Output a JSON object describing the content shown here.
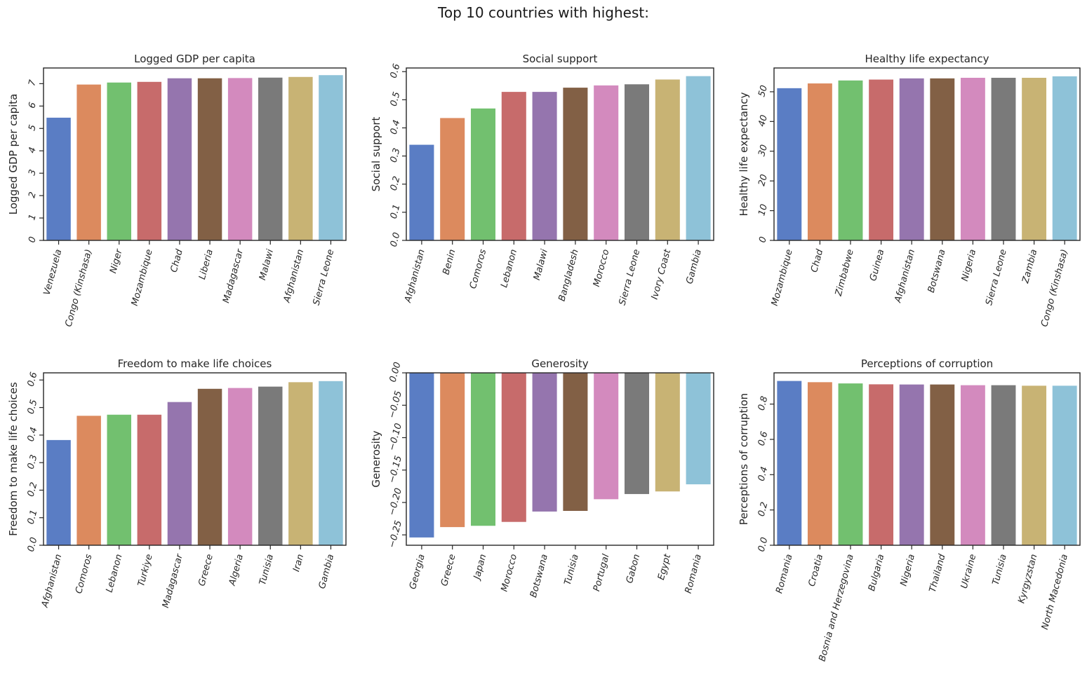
{
  "figure": {
    "suptitle": "Top 10 countries with highest:"
  },
  "palette": [
    "#5a7dc4",
    "#dc8a5e",
    "#72c06f",
    "#c76b6b",
    "#9575ae",
    "#826045",
    "#d38abe",
    "#7a7a7a",
    "#c8b374",
    "#8ec2d8"
  ],
  "chart_data": [
    {
      "type": "bar",
      "title": "Logged GDP per capita",
      "ylabel": "Logged GDP per capita",
      "xlabel": "",
      "categories": [
        "Venezuela",
        "Congo (Kinshasa)",
        "Niger",
        "Mozambique",
        "Chad",
        "Liberia",
        "Madagascar",
        "Malawi",
        "Afghanistan",
        "Sierra Leone"
      ],
      "values": [
        5.48,
        6.96,
        7.05,
        7.08,
        7.24,
        7.24,
        7.25,
        7.27,
        7.3,
        7.38
      ],
      "ylim": [
        0,
        7.7
      ],
      "yticks": [
        0,
        1,
        2,
        3,
        4,
        5,
        6,
        7
      ],
      "ytick_labels": [
        "0",
        "1",
        "2",
        "3",
        "4",
        "5",
        "6",
        "7"
      ]
    },
    {
      "type": "bar",
      "title": "Social support",
      "ylabel": "Social support",
      "xlabel": "",
      "categories": [
        "Afghanistan",
        "Benin",
        "Comoros",
        "Lebanon",
        "Malawi",
        "Bangladesh",
        "Morocco",
        "Sierra Leone",
        "Ivory Coast",
        "Gambia"
      ],
      "values": [
        0.34,
        0.435,
        0.469,
        0.528,
        0.528,
        0.543,
        0.551,
        0.555,
        0.572,
        0.584
      ],
      "ylim": [
        0,
        0.613
      ],
      "yticks": [
        0,
        0.1,
        0.2,
        0.3,
        0.4,
        0.5,
        0.6
      ],
      "ytick_labels": [
        "0.0",
        "0.1",
        "0.2",
        "0.3",
        "0.4",
        "0.5",
        "0.6"
      ]
    },
    {
      "type": "bar",
      "title": "Healthy life expectancy",
      "ylabel": "Healthy life expectancy",
      "xlabel": "",
      "categories": [
        "Mozambique",
        "Chad",
        "Zimbabwe",
        "Guinea",
        "Afghanistan",
        "Botswana",
        "Nigeria",
        "Sierra Leone",
        "Zambia",
        "Congo (Kinshasa)"
      ],
      "values": [
        51.2,
        52.8,
        53.8,
        54.1,
        54.5,
        54.5,
        54.7,
        54.7,
        54.7,
        55.2
      ],
      "ylim": [
        0,
        58
      ],
      "yticks": [
        0,
        10,
        20,
        30,
        40,
        50
      ],
      "ytick_labels": [
        "0",
        "10",
        "20",
        "30",
        "40",
        "50"
      ]
    },
    {
      "type": "bar",
      "title": "Freedom to make life choices",
      "ylabel": "Freedom to make life choices",
      "xlabel": "",
      "categories": [
        "Afghanistan",
        "Comoros",
        "Lebanon",
        "Turkiye",
        "Madagascar",
        "Greece",
        "Algeria",
        "Tunisia",
        "Iran",
        "Gambia"
      ],
      "values": [
        0.382,
        0.47,
        0.474,
        0.474,
        0.52,
        0.568,
        0.571,
        0.576,
        0.592,
        0.596
      ],
      "ylim": [
        0,
        0.626
      ],
      "yticks": [
        0,
        0.1,
        0.2,
        0.3,
        0.4,
        0.5,
        0.6
      ],
      "ytick_labels": [
        "0.0",
        "0.1",
        "0.2",
        "0.3",
        "0.4",
        "0.5",
        "0.6"
      ]
    },
    {
      "type": "bar",
      "title": "Generosity",
      "ylabel": "Generosity",
      "xlabel": "",
      "categories": [
        "Georgia",
        "Greece",
        "Japan",
        "Morocco",
        "Botswana",
        "Tunisia",
        "Portugal",
        "Gabon",
        "Egypt",
        "Romania"
      ],
      "values": [
        -0.254,
        -0.238,
        -0.236,
        -0.23,
        -0.214,
        -0.213,
        -0.195,
        -0.187,
        -0.183,
        -0.172
      ],
      "ylim": [
        -0.266,
        0
      ],
      "yticks": [
        0,
        -0.05,
        -0.1,
        -0.15,
        -0.2,
        -0.25
      ],
      "ytick_labels": [
        "0.00",
        "−0.05",
        "−0.10",
        "−0.15",
        "−0.20",
        "−0.25"
      ]
    },
    {
      "type": "bar",
      "title": "Perceptions of corruption",
      "ylabel": "Perceptions of corruption",
      "xlabel": "",
      "categories": [
        "Romania",
        "Croatia",
        "Bosnia and Herzegovina",
        "Bulgaria",
        "Nigeria",
        "Thailand",
        "Ukraine",
        "Tunisia",
        "Kyrgyzstan",
        "North Macedonia"
      ],
      "values": [
        0.931,
        0.924,
        0.917,
        0.912,
        0.911,
        0.911,
        0.907,
        0.907,
        0.904,
        0.904
      ],
      "ylim": [
        0,
        0.977
      ],
      "yticks": [
        0,
        0.2,
        0.4,
        0.6,
        0.8
      ],
      "ytick_labels": [
        "0.0",
        "0.2",
        "0.4",
        "0.6",
        "0.8"
      ]
    }
  ]
}
